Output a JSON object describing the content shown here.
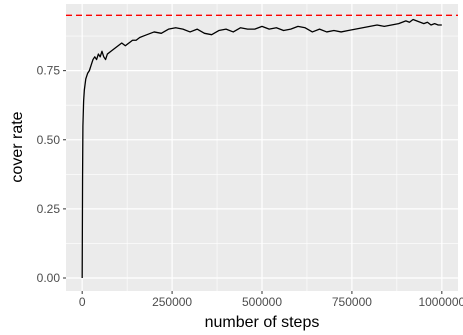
{
  "chart_data": {
    "type": "line",
    "title": "",
    "xlabel": "number of steps",
    "ylabel": "cover rate",
    "xlim": [
      -45000,
      1045000
    ],
    "ylim": [
      -0.047,
      0.991
    ],
    "x_ticks": [
      0,
      250000,
      500000,
      750000,
      1000000
    ],
    "x_tick_labels": [
      "0",
      "250000",
      "500000",
      "750000",
      "1000000"
    ],
    "y_ticks": [
      0.0,
      0.25,
      0.5,
      0.75
    ],
    "y_tick_labels": [
      "0.00",
      "0.25",
      "0.50",
      "0.75"
    ],
    "grid": true,
    "legend": "none",
    "reference_line": {
      "y": 0.95,
      "style": "dashed",
      "color": "#ff0000"
    },
    "series": [
      {
        "color": "#000000",
        "x": [
          0,
          1000,
          2000,
          4000,
          6000,
          8000,
          10000,
          15000,
          20000,
          25000,
          30000,
          35000,
          40000,
          45000,
          50000,
          55000,
          60000,
          65000,
          70000,
          80000,
          90000,
          100000,
          110000,
          120000,
          130000,
          140000,
          150000,
          160000,
          170000,
          180000,
          190000,
          200000,
          220000,
          240000,
          260000,
          280000,
          300000,
          320000,
          340000,
          360000,
          380000,
          400000,
          420000,
          440000,
          460000,
          480000,
          500000,
          520000,
          540000,
          560000,
          580000,
          600000,
          620000,
          640000,
          660000,
          680000,
          700000,
          720000,
          740000,
          760000,
          780000,
          800000,
          820000,
          840000,
          860000,
          880000,
          900000,
          910000,
          920000,
          930000,
          940000,
          950000,
          960000,
          970000,
          980000,
          990000,
          1000000
        ],
        "y": [
          0.0,
          0.35,
          0.55,
          0.64,
          0.68,
          0.7,
          0.72,
          0.74,
          0.75,
          0.77,
          0.79,
          0.8,
          0.79,
          0.81,
          0.8,
          0.82,
          0.8,
          0.79,
          0.81,
          0.82,
          0.83,
          0.84,
          0.85,
          0.84,
          0.85,
          0.86,
          0.86,
          0.87,
          0.875,
          0.88,
          0.885,
          0.89,
          0.885,
          0.9,
          0.905,
          0.9,
          0.89,
          0.9,
          0.885,
          0.88,
          0.895,
          0.9,
          0.89,
          0.905,
          0.9,
          0.9,
          0.91,
          0.9,
          0.905,
          0.895,
          0.9,
          0.91,
          0.905,
          0.89,
          0.9,
          0.89,
          0.895,
          0.89,
          0.895,
          0.9,
          0.905,
          0.91,
          0.915,
          0.91,
          0.915,
          0.92,
          0.93,
          0.925,
          0.935,
          0.93,
          0.925,
          0.92,
          0.925,
          0.915,
          0.92,
          0.915,
          0.915
        ]
      }
    ]
  }
}
